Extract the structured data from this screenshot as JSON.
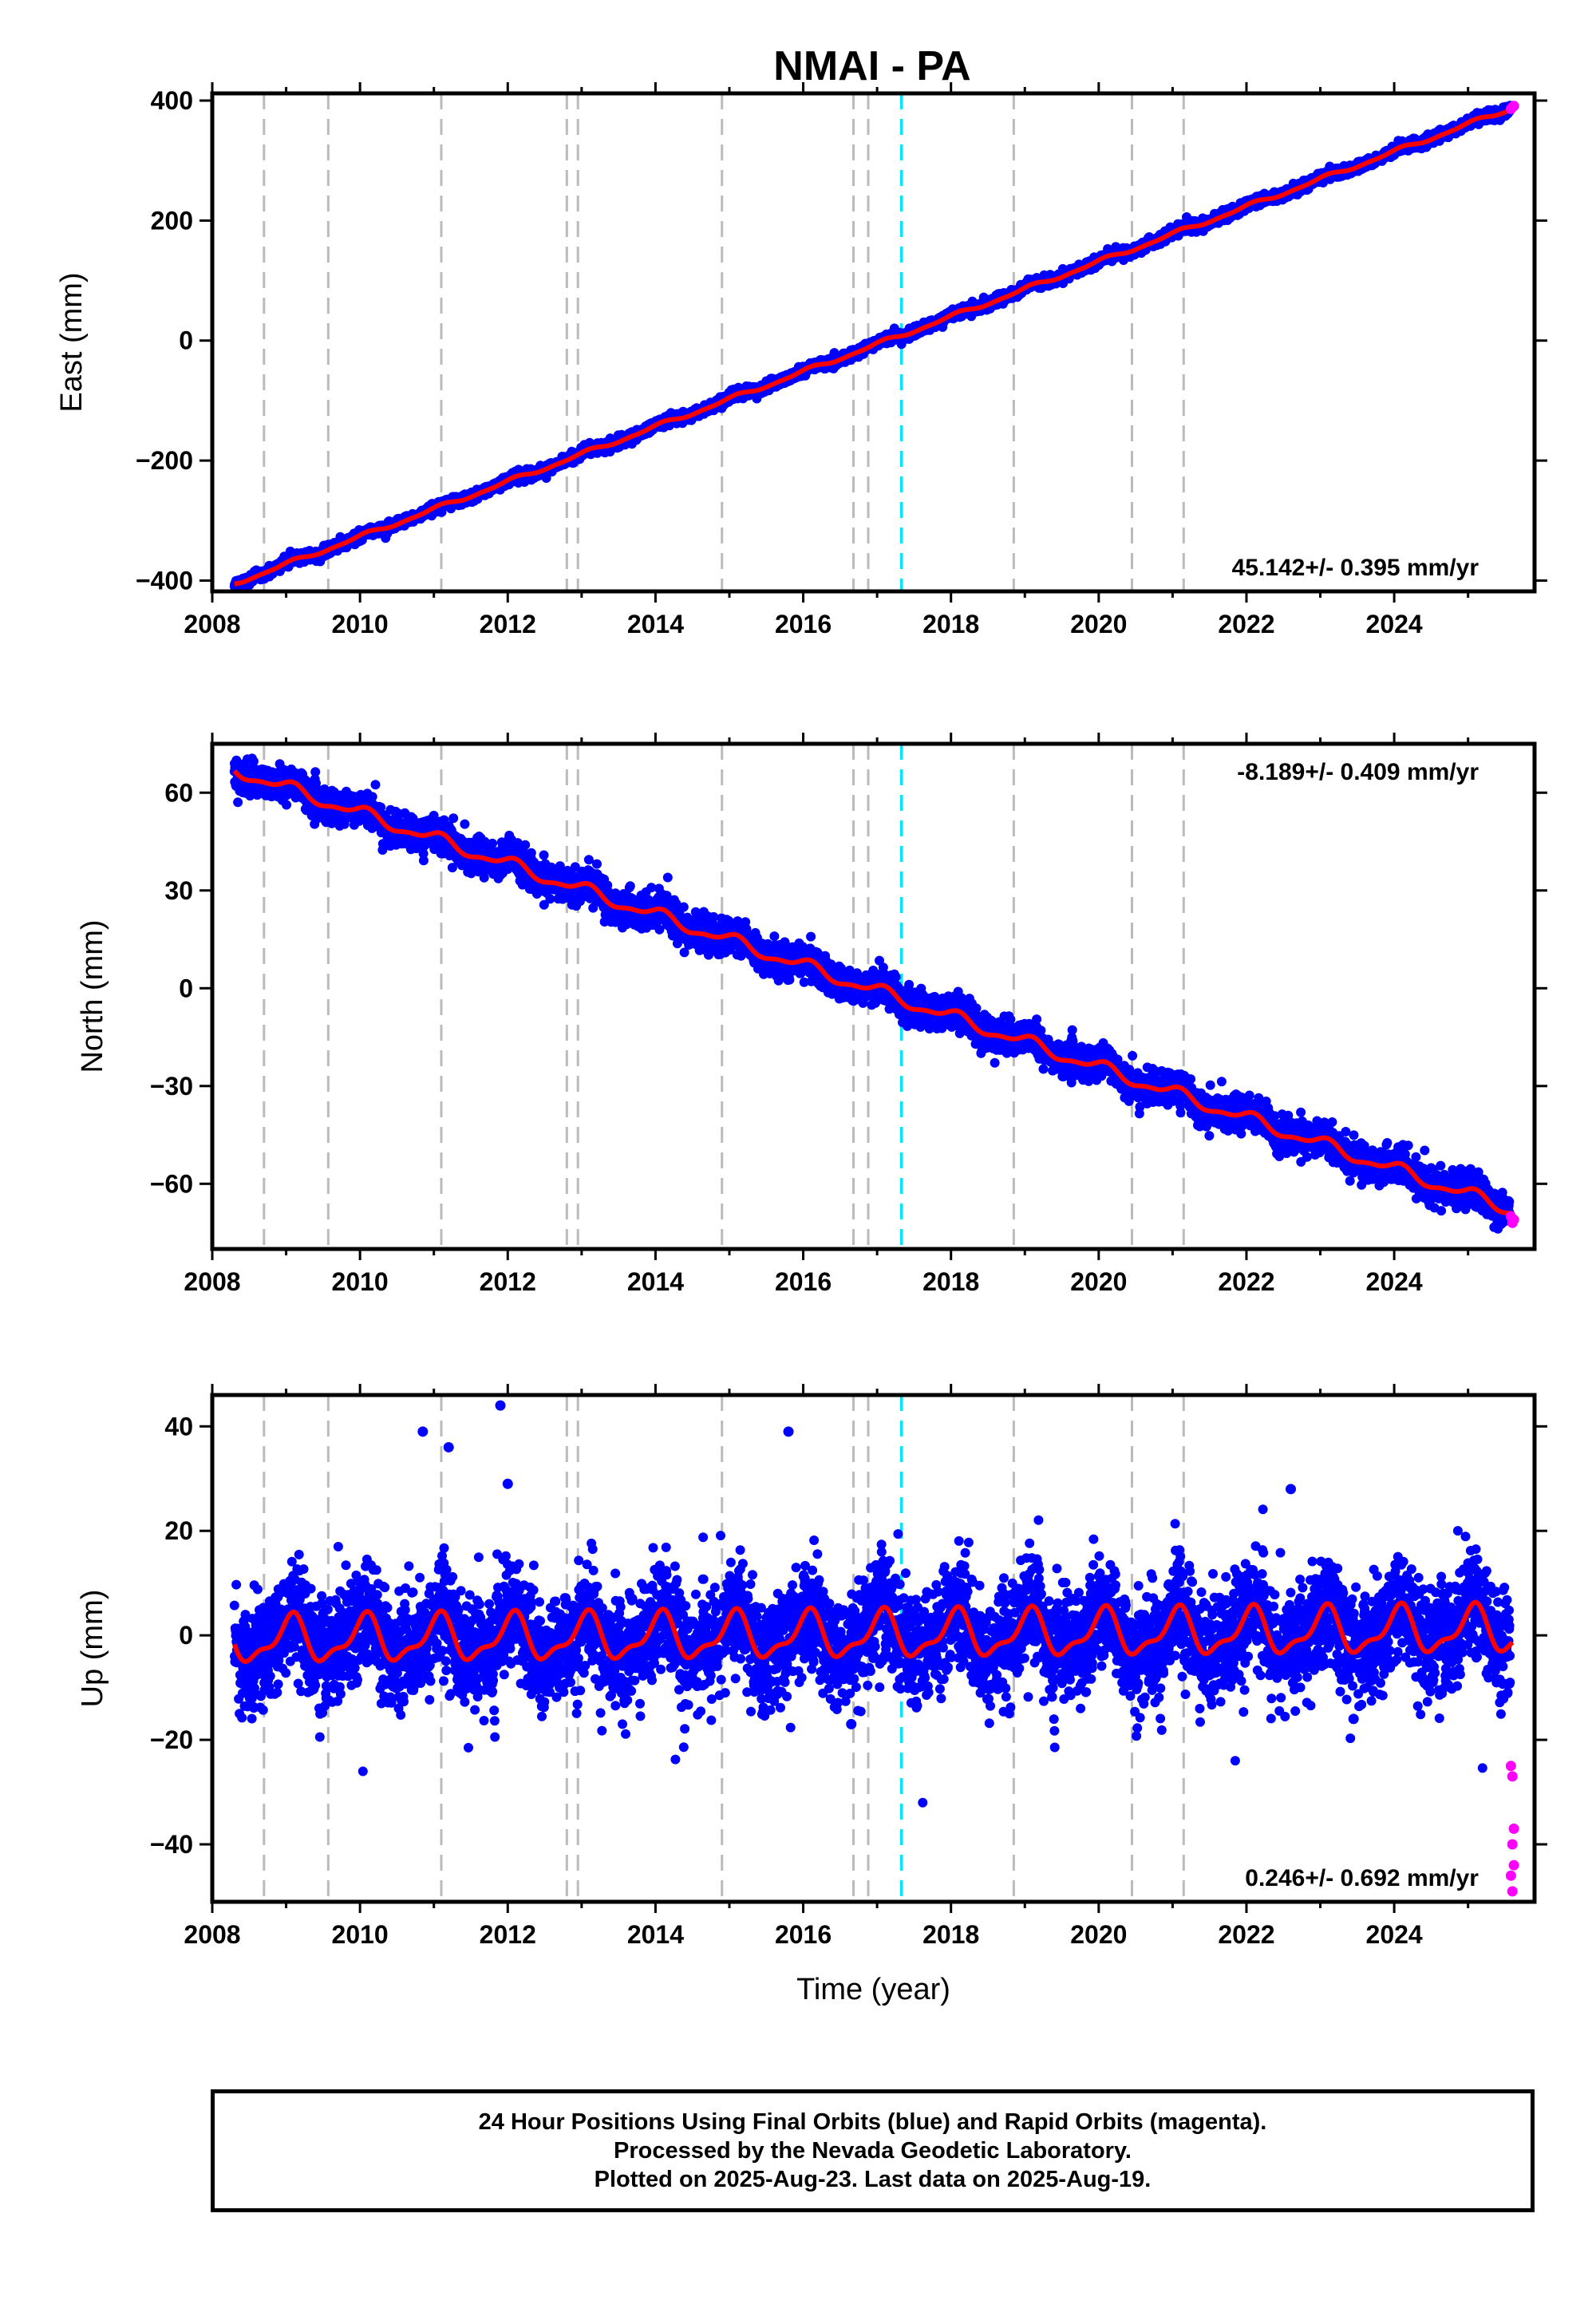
{
  "title": "NMAI - PA",
  "colors": {
    "final_points": "#0000ff",
    "rapid_points": "#ff00ff",
    "model_line": "#ff0000",
    "event_line": "#bbbbbb",
    "highlight_event_line": "#00e5ff"
  },
  "chart_data": [
    {
      "type": "scatter",
      "component": "East",
      "ylabel": "East (mm)",
      "xlabel": "",
      "xlim": [
        2008.0,
        2025.9
      ],
      "ylim": [
        -418,
        412
      ],
      "xticks": [
        "2008",
        "2010",
        "2012",
        "2014",
        "2016",
        "2018",
        "2020",
        "2022",
        "2024"
      ],
      "yticks": [
        "400",
        "200",
        "0",
        "−200",
        "−400"
      ],
      "ytick_values": [
        400,
        200,
        0,
        -200,
        -400
      ],
      "rate_label": "45.142+/- 0.395 mm/yr",
      "rate_position": "bottom-right",
      "trend": {
        "start": [
          2008.3,
          -405
        ],
        "end": [
          2025.6,
          388
        ],
        "slope": 45.142
      },
      "scatter_spread": 4,
      "seasonal_amplitude": 3,
      "rapid_points": [
        [
          2025.58,
          386
        ],
        [
          2025.6,
          389
        ],
        [
          2025.62,
          391
        ]
      ]
    },
    {
      "type": "scatter",
      "component": "North",
      "ylabel": "North (mm)",
      "xlabel": "",
      "xlim": [
        2008.0,
        2025.9
      ],
      "ylim": [
        -80,
        75
      ],
      "xticks": [
        "2008",
        "2010",
        "2012",
        "2014",
        "2016",
        "2018",
        "2020",
        "2022",
        "2024"
      ],
      "yticks": [
        "60",
        "30",
        "0",
        "−30",
        "−60"
      ],
      "ytick_values": [
        60,
        30,
        0,
        -30,
        -60
      ],
      "rate_label": "-8.189+/- 0.409 mm/yr",
      "rate_position": "top-right",
      "trend": {
        "start": [
          2008.3,
          67
        ],
        "end": [
          2025.6,
          -68
        ],
        "slope": -8.189
      },
      "scatter_spread": 2.5,
      "seasonal_amplitude": 1.8,
      "rapid_points": [
        [
          2025.58,
          -70
        ],
        [
          2025.6,
          -72
        ],
        [
          2025.62,
          -71
        ]
      ]
    },
    {
      "type": "scatter",
      "component": "Up",
      "ylabel": "Up (mm)",
      "xlabel": "Time (year)",
      "xlim": [
        2008.0,
        2025.9
      ],
      "ylim": [
        -51,
        46
      ],
      "xticks": [
        "2008",
        "2010",
        "2012",
        "2014",
        "2016",
        "2018",
        "2020",
        "2022",
        "2024"
      ],
      "yticks": [
        "40",
        "20",
        "0",
        "−20",
        "−40"
      ],
      "ytick_values": [
        40,
        20,
        0,
        -20,
        -40
      ],
      "rate_label": "0.246+/- 0.692 mm/yr",
      "rate_position": "bottom-right",
      "trend": {
        "start": [
          2008.3,
          -1
        ],
        "end": [
          2025.6,
          1
        ],
        "slope": 0.246
      },
      "scatter_spread": 5,
      "seasonal_amplitude": 4,
      "outliers": [
        [
          2010.85,
          39
        ],
        [
          2011.9,
          44
        ],
        [
          2015.8,
          39
        ],
        [
          2011.2,
          36
        ],
        [
          2012.0,
          29
        ],
        [
          2022.6,
          28
        ],
        [
          2016.65,
          -17
        ],
        [
          2023.45,
          -16
        ]
      ],
      "rapid_points": [
        [
          2025.58,
          -25
        ],
        [
          2025.6,
          -27
        ],
        [
          2025.62,
          -37
        ],
        [
          2025.6,
          -40
        ],
        [
          2025.62,
          -44
        ],
        [
          2025.58,
          -46
        ],
        [
          2025.6,
          -49
        ]
      ]
    }
  ],
  "event_lines": [
    2008.7,
    2009.57,
    2011.1,
    2012.8,
    2012.95,
    2014.9,
    2016.68,
    2016.88,
    2018.85,
    2020.45,
    2021.15
  ],
  "highlight_event_lines": [
    2017.33
  ],
  "footer": {
    "line1": "24 Hour Positions Using Final Orbits (blue) and Rapid Orbits (magenta).",
    "line2": "Processed by the Nevada Geodetic Laboratory.",
    "line3": "Plotted on 2025-Aug-23. Last data on 2025-Aug-19."
  }
}
